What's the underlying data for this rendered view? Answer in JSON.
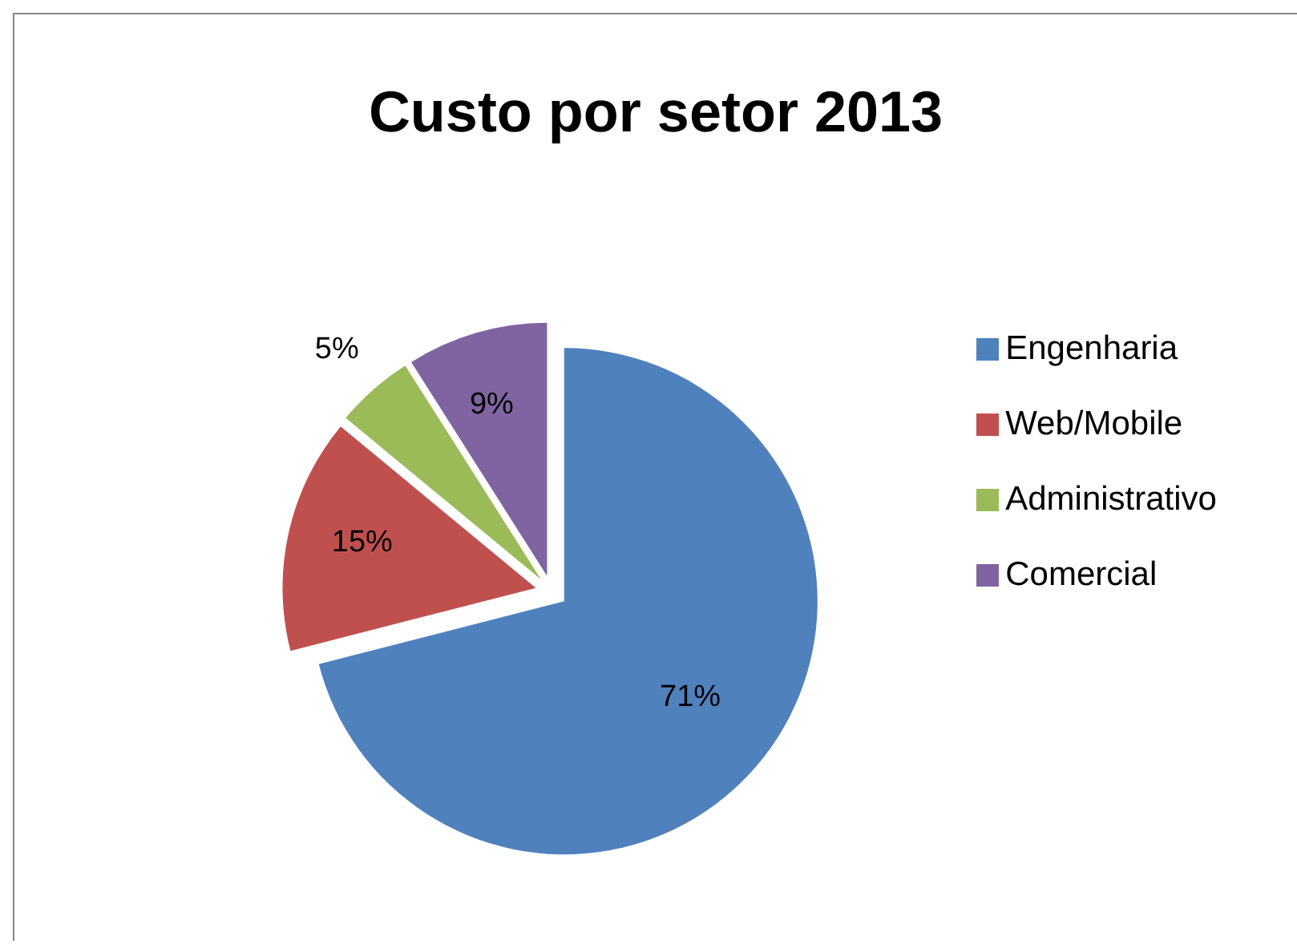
{
  "chart_data": {
    "type": "pie",
    "title": "Custo por setor 2013",
    "categories": [
      "Engenharia",
      "Web/Mobile",
      "Administrativo",
      "Comercial"
    ],
    "values": [
      71,
      15,
      5,
      9
    ],
    "colors": [
      "#4f81bd",
      "#c0504d",
      "#9bbb59",
      "#8064a2"
    ],
    "value_labels": [
      "71%",
      "15%",
      "5%",
      "9%"
    ],
    "legend": "right"
  }
}
